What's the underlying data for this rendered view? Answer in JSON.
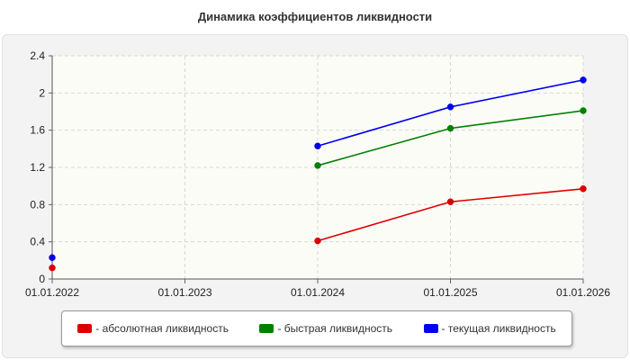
{
  "title": "Динамика коэффициентов ликвидности",
  "chart_data": {
    "type": "line",
    "title": "Динамика коэффициентов ликвидности",
    "xlabel": "",
    "ylabel": "",
    "x": [
      "01.01.2022",
      "01.01.2023",
      "01.01.2024",
      "01.01.2025",
      "01.01.2026"
    ],
    "ylim": [
      0,
      2.4
    ],
    "yticks": [
      "0",
      "0.4",
      "0.8",
      "1.2",
      "1.6",
      "2",
      "2.4"
    ],
    "grid": true,
    "legend_position": "bottom",
    "series": [
      {
        "name": "- абсолютная ликвидность",
        "color": "#dd0000",
        "values": [
          0.12,
          null,
          0.41,
          0.83,
          0.97
        ]
      },
      {
        "name": "- быстрая ликвидность",
        "color": "#008000",
        "values": [
          null,
          null,
          1.22,
          1.62,
          1.81
        ]
      },
      {
        "name": "- текущая ликвидность",
        "color": "#0000ee",
        "values": [
          0.23,
          null,
          1.43,
          1.85,
          2.14
        ]
      }
    ]
  }
}
